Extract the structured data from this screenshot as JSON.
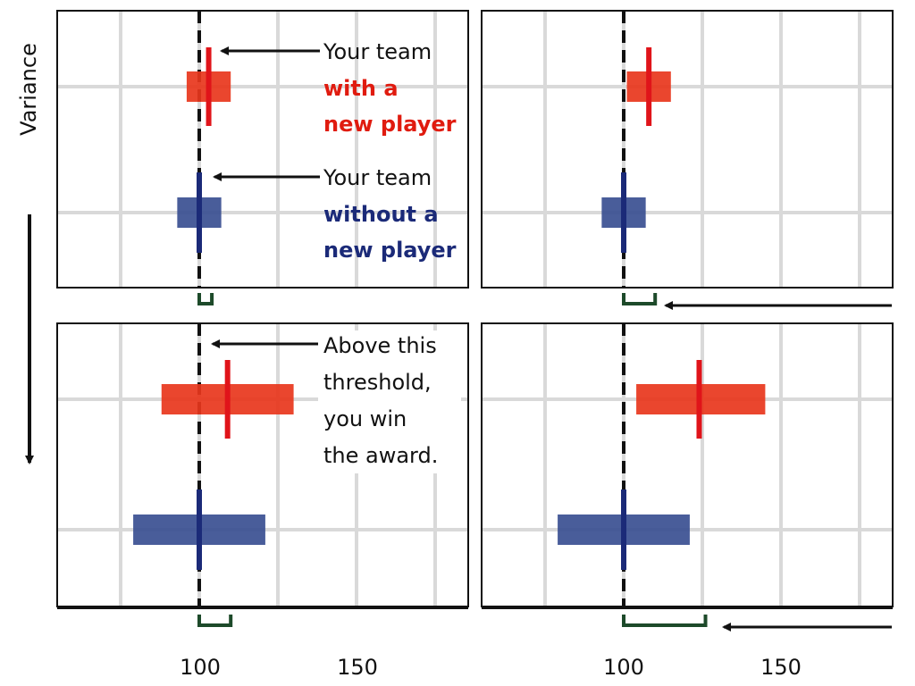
{
  "figure": {
    "y_axis_label": "Variance",
    "x_tick_labels": [
      "100",
      "150"
    ]
  },
  "annotations": {
    "with_player": {
      "line1": "Your team",
      "line2": "with a",
      "line3": "new player"
    },
    "without_player": {
      "line1": "Your team",
      "line2": "without a",
      "line3": "new player"
    },
    "threshold": {
      "line1": "Above this",
      "line2": "threshold,",
      "line3": "you win",
      "line4": "the award."
    }
  },
  "colors": {
    "with_player": "#e8361c",
    "with_player_text": "#e01b0f",
    "without_player": "#3a4f91",
    "without_player_text": "#1b2a78",
    "threshold": "#111111",
    "bracket": "#1d4a2a",
    "grid": "#d9d9d9"
  },
  "chart_data": [
    {
      "type": "bar",
      "panel": "top-left",
      "threshold": 100,
      "xlim": [
        55,
        185
      ],
      "series": [
        {
          "category": "with_player",
          "mean": 103,
          "low": 96,
          "high": 110,
          "marker_low": 100,
          "marker_high": 106
        },
        {
          "category": "without_player",
          "mean": 100,
          "low": 93,
          "high": 107,
          "marker_low": 97,
          "marker_high": 103
        }
      ],
      "bracket": [
        100,
        104
      ]
    },
    {
      "type": "bar",
      "panel": "top-right",
      "threshold": 100,
      "xlim": [
        55,
        185
      ],
      "series": [
        {
          "category": "with_player",
          "mean": 108,
          "low": 101,
          "high": 115,
          "marker_low": 105,
          "marker_high": 111
        },
        {
          "category": "without_player",
          "mean": 100,
          "low": 93,
          "high": 107,
          "marker_low": 97,
          "marker_high": 103
        }
      ],
      "bracket": [
        100,
        110
      ]
    },
    {
      "type": "bar",
      "panel": "bottom-left",
      "threshold": 100,
      "xlim": [
        55,
        185
      ],
      "series": [
        {
          "category": "with_player",
          "mean": 109,
          "low": 88,
          "high": 130,
          "marker_low": 100,
          "marker_high": 118
        },
        {
          "category": "without_player",
          "mean": 100,
          "low": 79,
          "high": 121,
          "marker_low": 91,
          "marker_high": 109
        }
      ],
      "bracket": [
        100,
        110
      ]
    },
    {
      "type": "bar",
      "panel": "bottom-right",
      "threshold": 100,
      "xlim": [
        55,
        185
      ],
      "series": [
        {
          "category": "with_player",
          "mean": 124,
          "low": 104,
          "high": 145,
          "marker_low": 116,
          "marker_high": 133
        },
        {
          "category": "without_player",
          "mean": 100,
          "low": 79,
          "high": 121,
          "marker_low": 91,
          "marker_high": 109
        }
      ],
      "bracket": [
        100,
        126
      ]
    }
  ]
}
